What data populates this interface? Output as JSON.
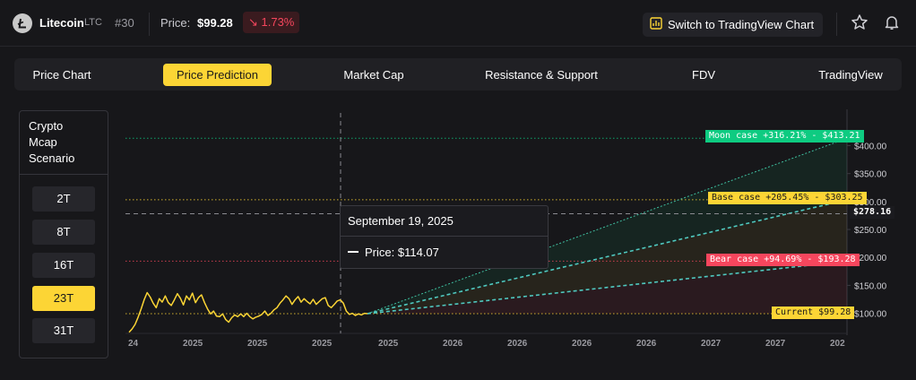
{
  "header": {
    "coin_name": "Litecoin",
    "coin_symbol": "LTC",
    "rank": "#30",
    "price_label": "Price:",
    "price_value": "$99.28",
    "change": "↘ 1.73%",
    "tv_button": "Switch to TradingView Chart"
  },
  "tabs": [
    "Price Chart",
    "Price Prediction",
    "Market Cap",
    "Resistance & Support",
    "FDV",
    "TradingView"
  ],
  "active_tab": 1,
  "scenario": {
    "title": "Crypto\nMcap\nScenario",
    "options": [
      "2T",
      "8T",
      "16T",
      "23T",
      "31T"
    ],
    "active": 3
  },
  "tooltip": {
    "date": "September 19, 2025",
    "price": "Price: $114.07"
  },
  "cases": {
    "moon": "Moon case +316.21% - $413.21",
    "base": "Base case +205.45% - $303.25",
    "bear": "Bear case +94.69% - $193.28",
    "current": "Current $99.28",
    "crosshair": "$278.16"
  },
  "colors": {
    "accent": "#fcd535",
    "moon": "#0ecb81",
    "bear": "#f6465d",
    "down": "#f6465d"
  },
  "chart_data": {
    "type": "line",
    "x_tick_labels": [
      "24",
      "2025",
      "2025",
      "2025",
      "2025",
      "2026",
      "2026",
      "2026",
      "2026",
      "2027",
      "2027",
      "202"
    ],
    "y_tick_labels": [
      "$400.00",
      "$350.00",
      "$300.00",
      "$250.00",
      "$200.00",
      "$150.00",
      "$100.00"
    ],
    "y_ticks": [
      400,
      350,
      300,
      250,
      200,
      150,
      100
    ],
    "ylim": [
      64,
      465
    ],
    "history": [
      66,
      72,
      80,
      93,
      108,
      124,
      137,
      129,
      118,
      110,
      126,
      120,
      131,
      119,
      114,
      124,
      135,
      127,
      115,
      131,
      124,
      136,
      119,
      128,
      133,
      119,
      108,
      99,
      104,
      95,
      94,
      99,
      89,
      84,
      92,
      97,
      94,
      99,
      94,
      100,
      94,
      90,
      93,
      95,
      98,
      104,
      96,
      100,
      106,
      110,
      118,
      124,
      131,
      126,
      116,
      124,
      130,
      120,
      126,
      121,
      117,
      125,
      116,
      121,
      126,
      128,
      114,
      110,
      116,
      122,
      124,
      118,
      104,
      98,
      100,
      96,
      99,
      97,
      100,
      99.28
    ],
    "projections": [
      {
        "name": "Moon case",
        "start": 99.28,
        "end": 413.21
      },
      {
        "name": "Base case",
        "start": 99.28,
        "end": 303.25
      },
      {
        "name": "Bear case",
        "start": 99.28,
        "end": 193.28
      }
    ],
    "crosshair_value": 278.16,
    "tooltip_value": 114.07
  }
}
